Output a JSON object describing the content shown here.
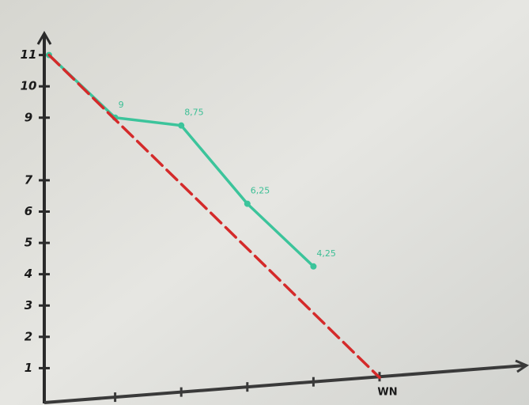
{
  "chart_data": {
    "type": "line",
    "categories": [
      null,
      null,
      null,
      null,
      null,
      "WN"
    ],
    "series": [
      {
        "color": "#3cc49b",
        "values": [
          11,
          9,
          8.75,
          6.25,
          4.25,
          null
        ],
        "value_labels": [
          null,
          "9",
          "8,75",
          "6,25",
          "4,25",
          null
        ],
        "dashed": false,
        "connect_gaps": false
      },
      {
        "color": "#d42a2a",
        "values": [
          11,
          null,
          null,
          null,
          null,
          0.7
        ],
        "dashed": true,
        "connect_gaps": true
      }
    ],
    "ylim": [
      0,
      12
    ],
    "yticks": [
      1,
      2,
      3,
      4,
      5,
      6,
      7,
      9,
      10,
      11
    ]
  }
}
